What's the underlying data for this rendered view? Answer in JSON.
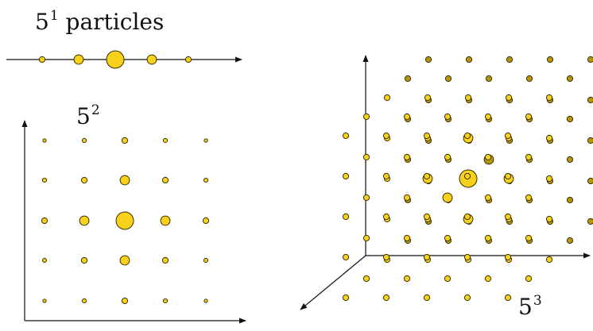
{
  "labels": {
    "one_d": {
      "base": "5",
      "exp": "1",
      "suffix": " particles"
    },
    "two_d": {
      "base": "5",
      "exp": "2"
    },
    "three_d": {
      "base": "5",
      "exp": "3"
    }
  },
  "colors": {
    "particle_fill": "#F7D11C",
    "particle_shade": "#B8960A",
    "particle_stroke": "#3a3000",
    "axis": "#111111"
  },
  "grid": {
    "n": 5,
    "particle_weights": [
      0.2,
      0.45,
      1.0,
      0.45,
      0.2
    ]
  }
}
